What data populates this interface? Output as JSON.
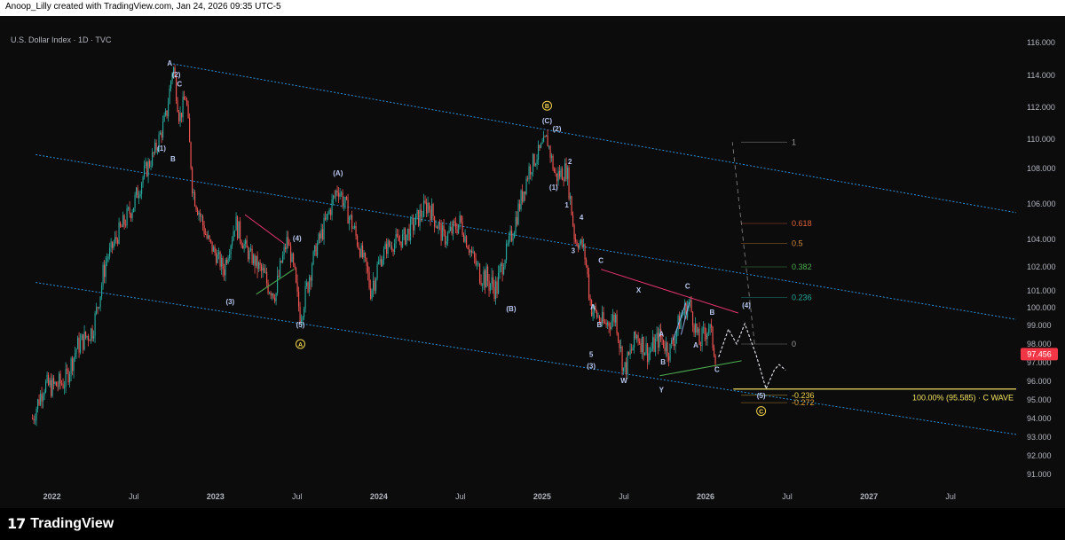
{
  "header": {
    "attribution": "Anoop_Lilly created with TradingView.com, Jan 24, 2026 09:35 UTC-5",
    "symbol": "U.S. Dollar Index · 1D · TVC"
  },
  "footer": {
    "logo_mark": "17",
    "logo_text": "TradingView"
  },
  "colors": {
    "background": "#0c0c0d",
    "up": "#26a69a",
    "down": "#ef5350",
    "channel": "#2f8fd0",
    "label": "#b8c7ee",
    "fib_yellow": "#f0d44a",
    "price_badge": "#f23645"
  },
  "chart_data": {
    "type": "candlestick",
    "title": "U.S. Dollar Index",
    "interval": "1D",
    "ylim": [
      90.4,
      117.1
    ],
    "x_ticks": [
      "2022",
      "Jul",
      "2023",
      "Jul",
      "2024",
      "Jul",
      "2025",
      "Jul",
      "2026",
      "Jul",
      "2027",
      "Jul"
    ],
    "x_tick_times": [
      2022.0,
      2022.5,
      2023.0,
      2023.5,
      2024.0,
      2024.5,
      2025.0,
      2025.5,
      2026.0,
      2026.5,
      2027.0,
      2027.5
    ],
    "y_ticks": [
      "91.000",
      "92.000",
      "93.000",
      "94.000",
      "95.000",
      "96.000",
      "97.000",
      "98.000",
      "99.000",
      "100.000",
      "101.000",
      "102.000",
      "104.000",
      "106.000",
      "108.000",
      "110.000",
      "112.000",
      "114.000",
      "116.000"
    ],
    "last_price": "97.456",
    "price_path": [
      [
        2021.88,
        94.0
      ],
      [
        2021.95,
        95.8
      ],
      [
        2022.0,
        95.7
      ],
      [
        2022.08,
        96.0
      ],
      [
        2022.15,
        97.8
      ],
      [
        2022.25,
        98.8
      ],
      [
        2022.33,
        102.5
      ],
      [
        2022.4,
        104.2
      ],
      [
        2022.5,
        106.0
      ],
      [
        2022.55,
        107.4
      ],
      [
        2022.62,
        108.9
      ],
      [
        2022.7,
        111.5
      ],
      [
        2022.74,
        114.7
      ],
      [
        2022.78,
        111.3
      ],
      [
        2022.82,
        112.8
      ],
      [
        2022.86,
        106.8
      ],
      [
        2022.95,
        104.0
      ],
      [
        2023.05,
        101.9
      ],
      [
        2023.12,
        105.0
      ],
      [
        2023.2,
        103.0
      ],
      [
        2023.3,
        101.5
      ],
      [
        2023.37,
        100.8
      ],
      [
        2023.44,
        104.0
      ],
      [
        2023.52,
        99.5
      ],
      [
        2023.62,
        103.5
      ],
      [
        2023.75,
        107.0
      ],
      [
        2023.85,
        104.5
      ],
      [
        2023.95,
        101.0
      ],
      [
        2024.05,
        103.5
      ],
      [
        2024.15,
        104.0
      ],
      [
        2024.3,
        106.0
      ],
      [
        2024.4,
        104.0
      ],
      [
        2024.5,
        105.0
      ],
      [
        2024.6,
        102.0
      ],
      [
        2024.72,
        101.0
      ],
      [
        2024.82,
        104.5
      ],
      [
        2024.92,
        108.0
      ],
      [
        2025.03,
        110.0
      ],
      [
        2025.08,
        107.5
      ],
      [
        2025.15,
        108.0
      ],
      [
        2025.2,
        104.0
      ],
      [
        2025.25,
        103.5
      ],
      [
        2025.3,
        100.0
      ],
      [
        2025.38,
        99.0
      ],
      [
        2025.45,
        99.5
      ],
      [
        2025.5,
        96.5
      ],
      [
        2025.58,
        98.5
      ],
      [
        2025.65,
        97.5
      ],
      [
        2025.72,
        98.4
      ],
      [
        2025.78,
        97.6
      ],
      [
        2025.85,
        99.5
      ],
      [
        2025.9,
        100.3
      ],
      [
        2025.96,
        98.0
      ],
      [
        2026.02,
        99.0
      ],
      [
        2026.06,
        97.456
      ]
    ],
    "channel_lines": [
      {
        "name": "upper",
        "from": [
          2022.74,
          114.7
        ],
        "to": [
          2028.3,
          104.8
        ]
      },
      {
        "name": "middle",
        "from": [
          2022.74,
          107.6
        ],
        "to": [
          2028.3,
          98.7
        ]
      },
      {
        "name": "lower",
        "from": [
          2022.74,
          100.2
        ],
        "to": [
          2028.3,
          92.6
        ]
      }
    ],
    "trendlines": [
      {
        "color": "#e6346d",
        "from": [
          2023.18,
          105.4
        ],
        "to": [
          2023.42,
          103.7
        ]
      },
      {
        "color": "#4caf50",
        "from": [
          2023.25,
          100.8
        ],
        "to": [
          2023.48,
          101.9
        ]
      },
      {
        "color": "#e6346d",
        "from": [
          2025.36,
          101.9
        ],
        "to": [
          2026.2,
          99.7
        ]
      },
      {
        "color": "#4caf50",
        "from": [
          2025.72,
          96.3
        ],
        "to": [
          2026.22,
          97.1
        ]
      },
      {
        "color": "#8fa6e0",
        "from": [
          2025.8,
          98.2
        ],
        "to": [
          2025.88,
          100.3
        ]
      },
      {
        "color": "#8fa6e0",
        "from": [
          2025.85,
          98.5
        ],
        "to": [
          2025.9,
          100.3
        ]
      }
    ],
    "projection": [
      [
        2026.08,
        97.3
      ],
      [
        2026.14,
        98.8
      ],
      [
        2026.19,
        98.0
      ],
      [
        2026.24,
        99.1
      ],
      [
        2026.31,
        97.4
      ],
      [
        2026.37,
        95.6
      ],
      [
        2026.42,
        96.6
      ],
      [
        2026.45,
        96.9
      ],
      [
        2026.49,
        96.6
      ]
    ],
    "fib_levels": [
      {
        "label": "1",
        "value": 109.8,
        "color": "#9a9a9a"
      },
      {
        "label": "0.618",
        "value": 104.9,
        "color": "#e0623a"
      },
      {
        "label": "0.5",
        "value": 103.7,
        "color": "#d08a3a"
      },
      {
        "label": "0.382",
        "value": 102.0,
        "color": "#4caf50"
      },
      {
        "label": "0.236",
        "value": 100.6,
        "color": "#26a69a"
      },
      {
        "label": "0",
        "value": 98.0,
        "color": "#9a9a9a"
      },
      {
        "label": "-0.236",
        "value": 95.25,
        "color": "#f0d44a"
      },
      {
        "label": "-0.272",
        "value": 94.85,
        "color": "#e0a030"
      }
    ],
    "fib_line_start": 2026.22,
    "fib_line_end": 2026.5,
    "fib_dashed": [
      [
        2026.3,
        98.0
      ],
      [
        2026.3,
        109.8
      ]
    ],
    "target_line": {
      "value": 95.585,
      "from": 2026.17,
      "label": "100.00% (95.585) · C WAVE",
      "color": "#f0e060"
    },
    "wave_labels": [
      {
        "t": 2022.72,
        "v": 114.6,
        "text": "A"
      },
      {
        "t": 2022.76,
        "v": 113.9,
        "text": "(2)"
      },
      {
        "t": 2022.78,
        "v": 113.3,
        "text": "C"
      },
      {
        "t": 2022.67,
        "v": 109.2,
        "text": "(1)"
      },
      {
        "t": 2022.74,
        "v": 108.5,
        "text": "B"
      },
      {
        "t": 2023.09,
        "v": 100.2,
        "text": "(3)"
      },
      {
        "t": 2023.5,
        "v": 103.9,
        "text": "(4)"
      },
      {
        "t": 2023.52,
        "v": 98.9,
        "text": "(5)"
      },
      {
        "t": 2023.75,
        "v": 107.6,
        "text": "(A)"
      },
      {
        "t": 2024.81,
        "v": 99.8,
        "text": "(B)"
      },
      {
        "t": 2025.03,
        "v": 111.0,
        "text": "(C)"
      },
      {
        "t": 2025.09,
        "v": 110.5,
        "text": "(2)"
      },
      {
        "t": 2025.17,
        "v": 108.3,
        "text": "2"
      },
      {
        "t": 2025.07,
        "v": 106.8,
        "text": "(1)"
      },
      {
        "t": 2025.15,
        "v": 105.8,
        "text": "1"
      },
      {
        "t": 2025.24,
        "v": 105.1,
        "text": "4"
      },
      {
        "t": 2025.19,
        "v": 103.0,
        "text": "3"
      },
      {
        "t": 2025.36,
        "v": 102.3,
        "text": "C"
      },
      {
        "t": 2025.31,
        "v": 99.9,
        "text": "A"
      },
      {
        "t": 2025.35,
        "v": 98.9,
        "text": "B"
      },
      {
        "t": 2025.3,
        "v": 97.3,
        "text": "5"
      },
      {
        "t": 2025.3,
        "v": 96.7,
        "text": "(3)"
      },
      {
        "t": 2025.5,
        "v": 95.9,
        "text": "W"
      },
      {
        "t": 2025.59,
        "v": 100.9,
        "text": "X"
      },
      {
        "t": 2025.73,
        "v": 95.4,
        "text": "Y"
      },
      {
        "t": 2025.73,
        "v": 98.4,
        "text": "A"
      },
      {
        "t": 2025.74,
        "v": 96.9,
        "text": "B"
      },
      {
        "t": 2025.89,
        "v": 101.1,
        "text": "C"
      },
      {
        "t": 2025.94,
        "v": 97.8,
        "text": "A"
      },
      {
        "t": 2026.04,
        "v": 99.6,
        "text": "B"
      },
      {
        "t": 2026.07,
        "v": 96.5,
        "text": "C"
      },
      {
        "t": 2026.25,
        "v": 100.0,
        "text": "(4)"
      },
      {
        "t": 2026.34,
        "v": 95.1,
        "text": "(5)"
      }
    ],
    "circled_labels": [
      {
        "t": 2023.52,
        "v": 98.0,
        "text": "A"
      },
      {
        "t": 2025.03,
        "v": 112.1,
        "text": "B"
      },
      {
        "t": 2026.34,
        "v": 94.4,
        "text": "C"
      }
    ]
  }
}
